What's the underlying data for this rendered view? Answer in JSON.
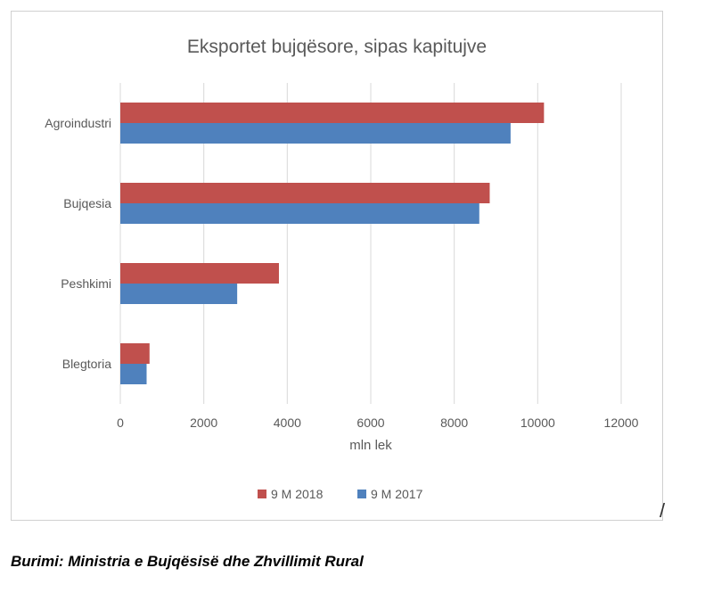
{
  "chart_data": {
    "type": "bar",
    "orientation": "horizontal",
    "title": "Eksportet bujqësore, sipas kapitujve",
    "xlabel": "mln lek",
    "ylabel": "",
    "categories": [
      "Agroindustri",
      "Bujqesia",
      "Peshkimi",
      "Blegtoria"
    ],
    "series": [
      {
        "name": "9 M 2018",
        "color": "#c0504d",
        "values": [
          10150,
          8850,
          3800,
          700
        ]
      },
      {
        "name": "9 M 2017",
        "color": "#4f81bd",
        "values": [
          9350,
          8600,
          2800,
          630
        ]
      }
    ],
    "xlim": [
      0,
      12000
    ],
    "xticks": [
      "0",
      "2000",
      "4000",
      "6000",
      "8000",
      "10000",
      "12000"
    ],
    "grid": true,
    "legend": "bottom"
  },
  "source": "Burimi: Ministria e Bujqësisë dhe Zhvillimit Rural",
  "stray_mark": "/"
}
